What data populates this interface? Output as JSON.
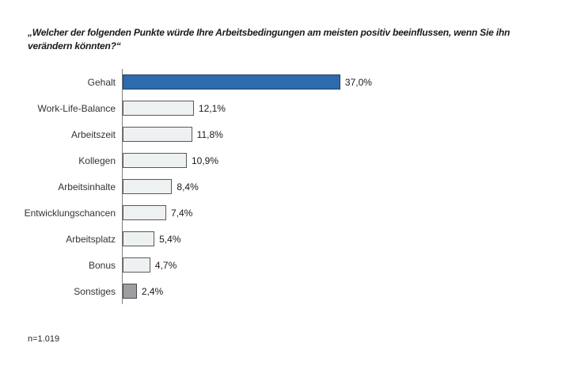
{
  "title": {
    "lines": [
      "„Welcher der folgenden Punkte würde Ihre Arbeitsbedingungen am meisten positiv beeinflussen, wenn Sie ihn",
      "verändern könnten?“"
    ]
  },
  "footnote": {
    "text": "n=1.019"
  },
  "chart_data": {
    "type": "bar",
    "orientation": "horizontal",
    "title": "„Welcher der folgenden Punkte würde Ihre Arbeitsbedingungen am meisten positiv beeinflussen, wenn Sie ihn verändern könnten?“",
    "categories": [
      "Gehalt",
      "Work-Life-Balance",
      "Arbeitszeit",
      "Kollegen",
      "Arbeitsinhalte",
      "Entwicklungschancen",
      "Arbeitsplatz",
      "Bonus",
      "Sonstiges"
    ],
    "values": [
      37.0,
      12.1,
      11.8,
      10.9,
      8.4,
      7.4,
      5.4,
      4.7,
      2.4
    ],
    "value_labels": [
      "37,0%",
      "12,1%",
      "11,8%",
      "10,9%",
      "8,4%",
      "7,4%",
      "5,4%",
      "4,7%",
      "2,4%"
    ],
    "bar_styles": [
      "highlight",
      "default",
      "default",
      "default",
      "default",
      "default",
      "default",
      "default",
      "muted"
    ],
    "xlim": [
      0,
      40
    ],
    "grid": false,
    "legend": false,
    "sample_note": "n=1.019",
    "colors": {
      "highlight_fill": "#2e6bad",
      "highlight_border": "#1f4163",
      "default_fill": "#eef1f2",
      "default_border": "#595959",
      "muted_fill": "#9c9ea1",
      "muted_border": "#4d4d4d",
      "axis": "#7f7f7f",
      "text": "#1a1a1a"
    }
  }
}
